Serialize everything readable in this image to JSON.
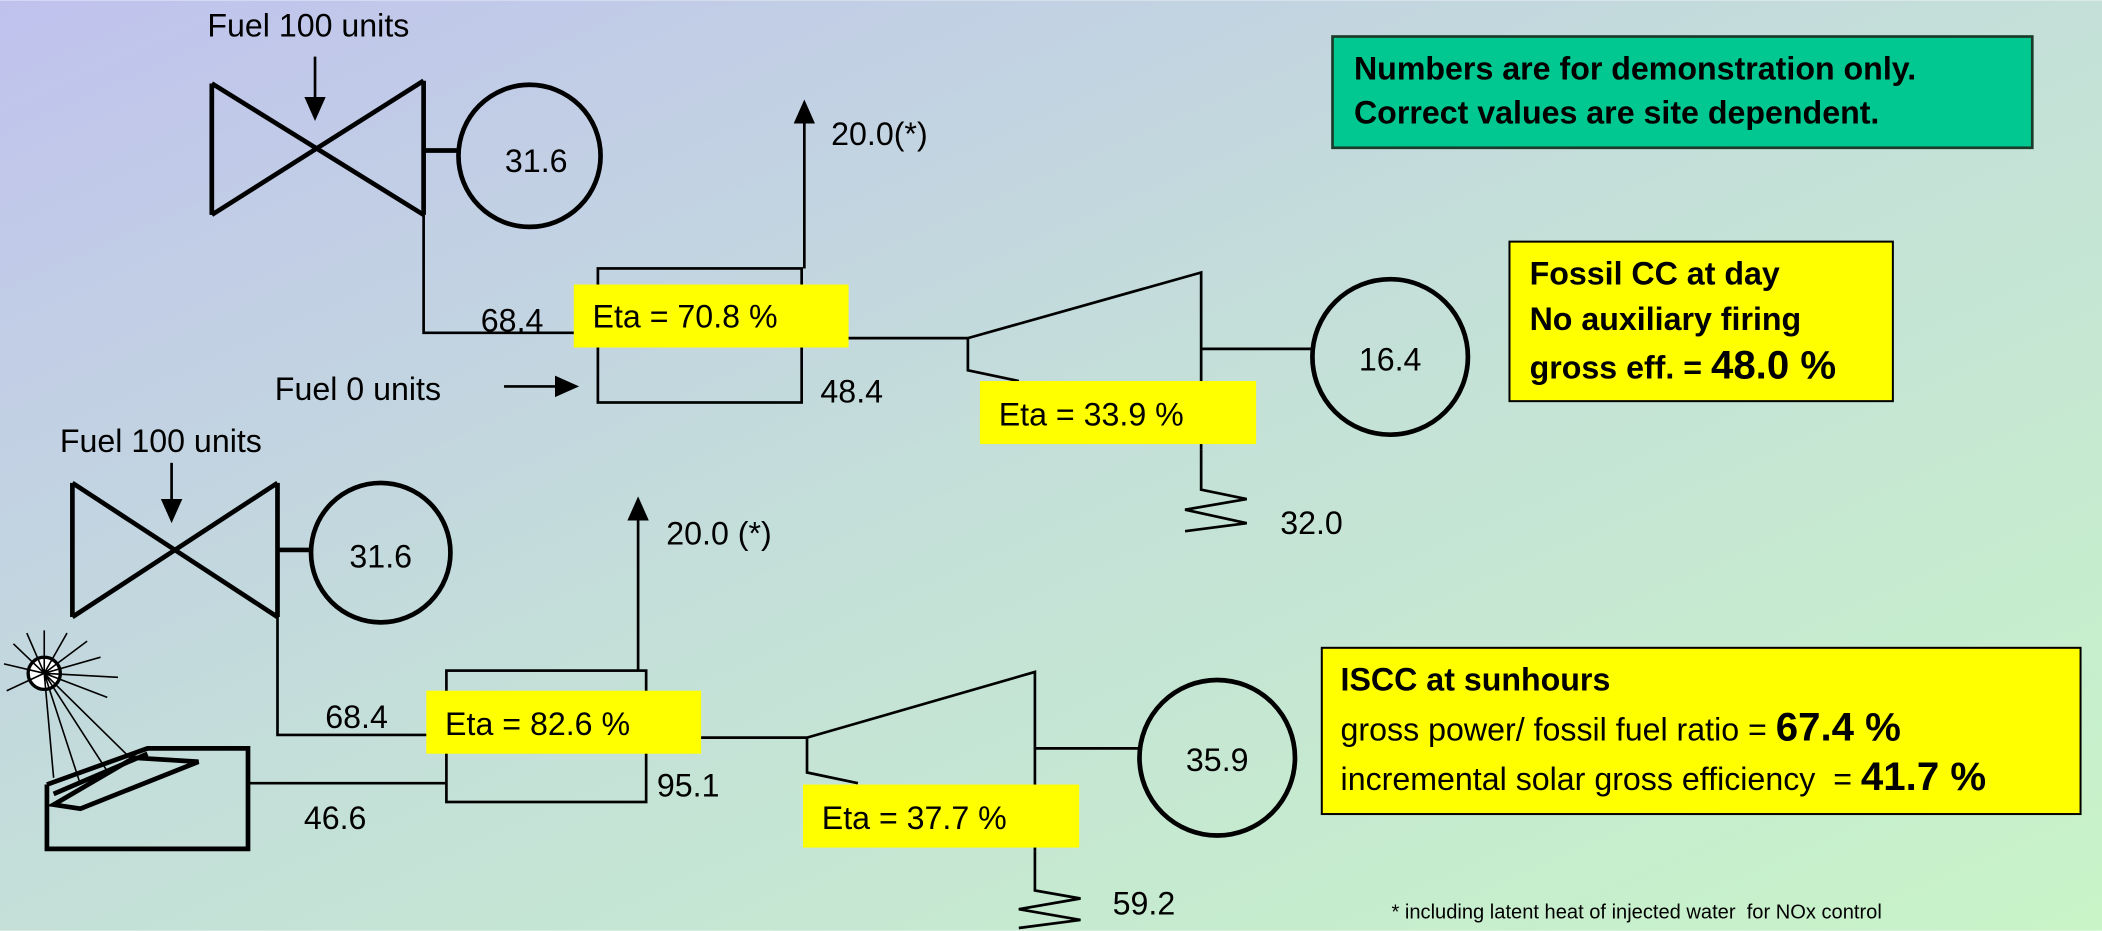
{
  "note_box": {
    "lines": [
      "Numbers are for demonstration only.",
      "Correct values are site dependent."
    ]
  },
  "fossil_cc": {
    "fuel_gt": "Fuel 100 units",
    "gt_power": "31.6",
    "gt_exhaust": "68.4",
    "hrsg_eta": "Eta = 70.8 %",
    "stack": "20.0(*)",
    "fuel_aux": "Fuel 0 units",
    "steam": "48.4",
    "st_eta": "Eta = 33.9 %",
    "st_power": "16.4",
    "condenser": "32.0",
    "info": {
      "lines": [
        "Fossil CC at day",
        "No auxiliary firing"
      ],
      "eff_label": "gross eff. = ",
      "eff_value": "48.0 %"
    }
  },
  "iscc": {
    "fuel_gt": "Fuel 100 units",
    "gt_power": "31.6",
    "gt_exhaust": "68.4",
    "hrsg_eta": "Eta = 82.6 %",
    "stack": "20.0 (*)",
    "solar": "46.6",
    "steam": "95.1",
    "st_eta": "Eta = 37.7 %",
    "st_power": "35.9",
    "condenser": "59.2",
    "info": {
      "title": "ISCC at sunhours",
      "ratio_label": "gross power/ fossil fuel ratio = ",
      "ratio_value": "67.4 %",
      "solar_label": "incremental solar gross efficiency  = ",
      "solar_value": "41.7 %"
    }
  },
  "footnote": "* including latent heat of injected water  for NOx control"
}
